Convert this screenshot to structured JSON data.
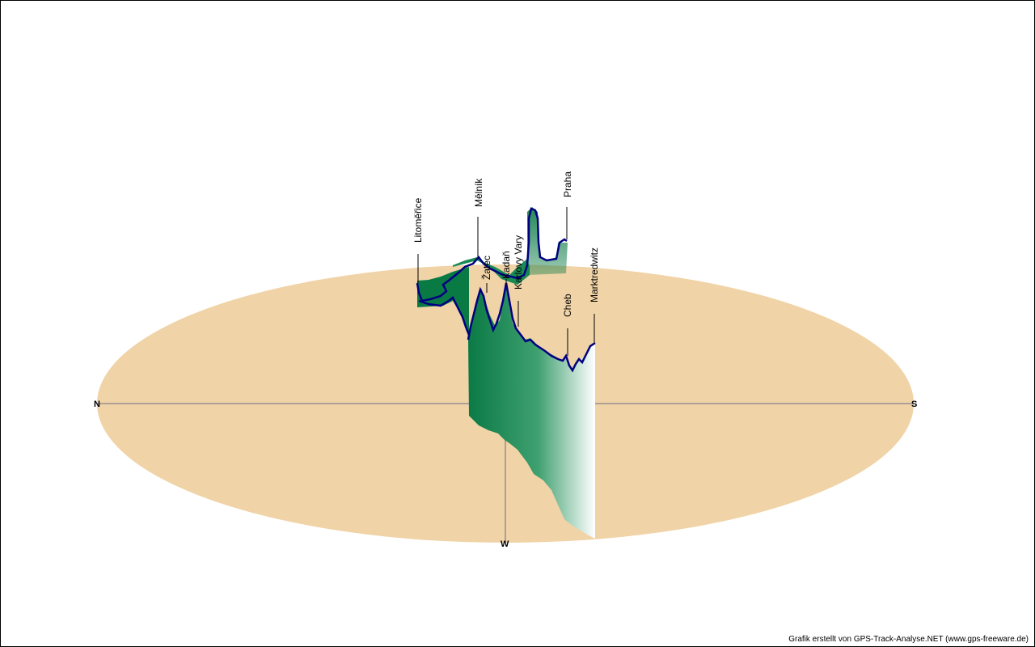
{
  "colors": {
    "ground": "#F0D3A6",
    "track": "#000080",
    "wall_dark": "#0A7A45",
    "wall_light": "#FFFFFF",
    "axis": "#6E6E88"
  },
  "compass": {
    "north": "N",
    "south": "S",
    "west": "W"
  },
  "places": [
    "Litoměřice",
    "Mělník",
    "Žatec",
    "Kadaň",
    "Karlovy Vary",
    "Praha",
    "Marktredwitz",
    "Cheb"
  ],
  "credit": "Grafik erstellt von GPS-Track-Analyse.NET (www.gps-freeware.de)"
}
